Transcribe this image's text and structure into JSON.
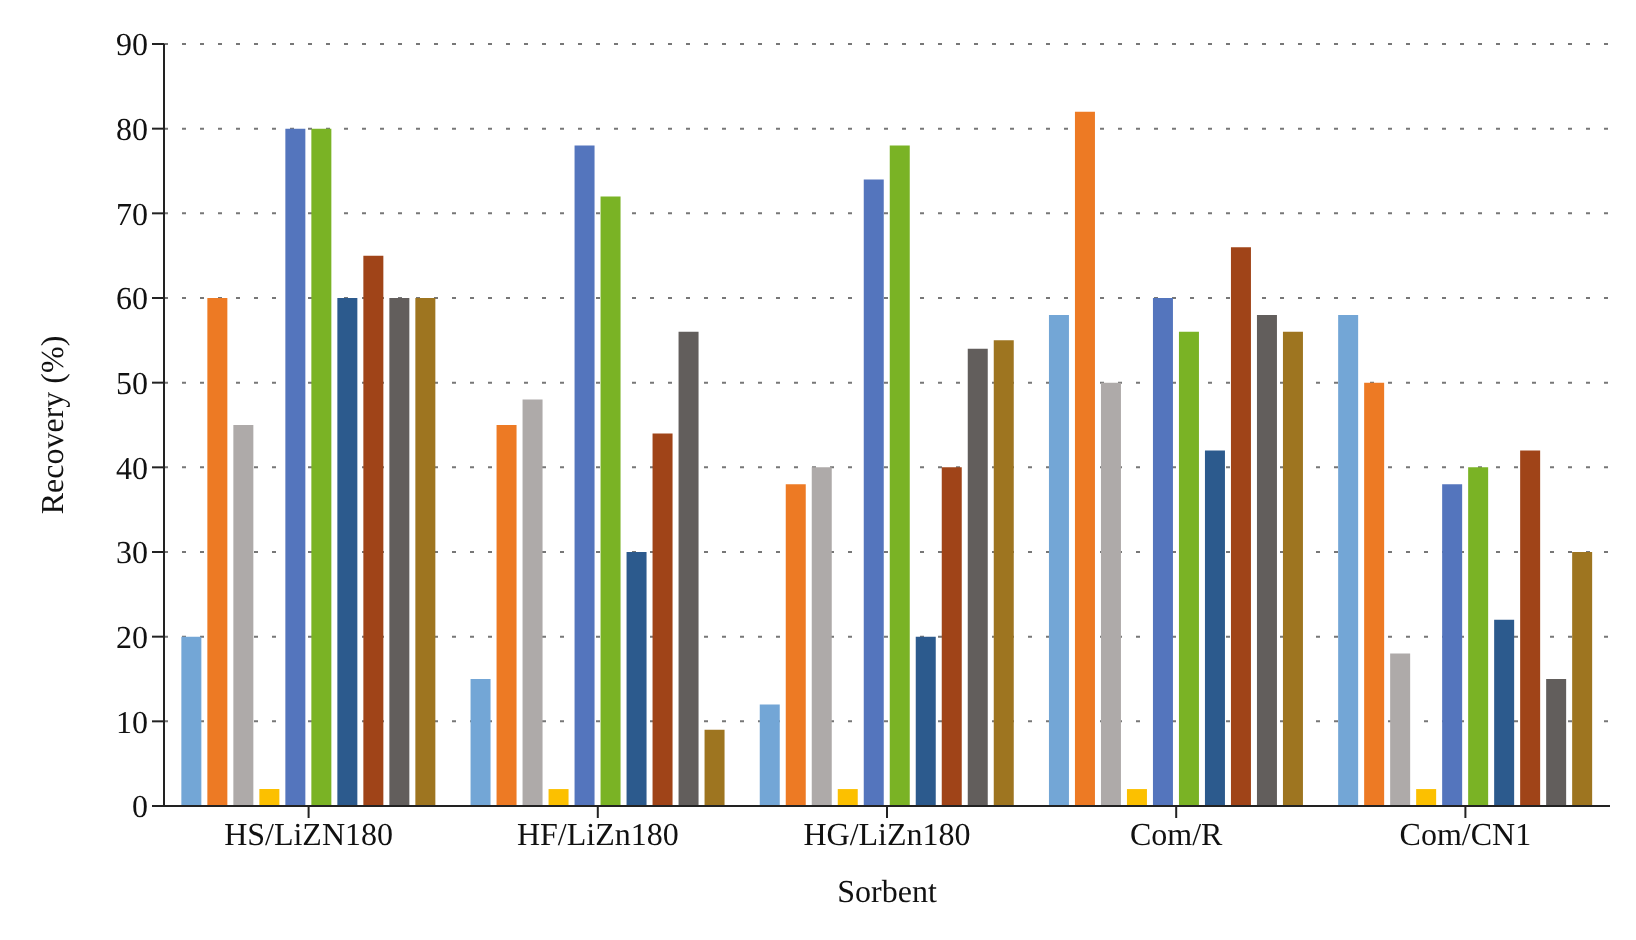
{
  "chart_data": {
    "type": "bar",
    "xlabel": "Sorbent",
    "ylabel": "Recovery (%)",
    "categories": [
      "HS/LiZN180",
      "HF/LiZn180",
      "HG/LiZn180",
      "Com/R",
      "Com/CN1"
    ],
    "series": [
      {
        "color": "#73a6d6",
        "values": [
          20,
          15,
          12,
          58,
          58
        ]
      },
      {
        "color": "#ed7a24",
        "values": [
          60,
          45,
          38,
          82,
          50
        ]
      },
      {
        "color": "#aeaaa9",
        "values": [
          45,
          48,
          40,
          50,
          18
        ]
      },
      {
        "color": "#fcc000",
        "values": [
          2,
          2,
          2,
          2,
          2
        ]
      },
      {
        "color": "#5475bd",
        "values": [
          80,
          78,
          74,
          60,
          38
        ]
      },
      {
        "color": "#7ab325",
        "values": [
          80,
          72,
          78,
          56,
          40
        ]
      },
      {
        "color": "#2c5a8d",
        "values": [
          60,
          30,
          20,
          42,
          22
        ]
      },
      {
        "color": "#a04418",
        "values": [
          65,
          44,
          40,
          66,
          42
        ]
      },
      {
        "color": "#625e5c",
        "values": [
          60,
          56,
          54,
          58,
          15
        ]
      },
      {
        "color": "#9e7520",
        "values": [
          60,
          9,
          55,
          56,
          30
        ]
      }
    ],
    "ylim": [
      0,
      90
    ],
    "yticks": [
      0,
      10,
      20,
      30,
      40,
      50,
      60,
      70,
      80,
      90
    ],
    "grid": "y",
    "legend": false
  }
}
